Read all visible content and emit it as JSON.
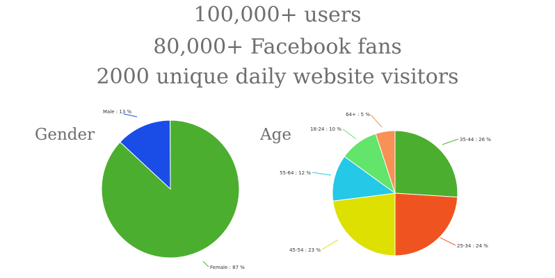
{
  "headlines": {
    "line1": "100,000+ users",
    "line2": "80,000+ Facebook fans",
    "line3": "2000 unique daily website visitors"
  },
  "chart_data": [
    {
      "type": "pie",
      "title": "Gender",
      "slices": [
        {
          "label": "Male",
          "value": 13,
          "text": "Male : 13 %",
          "color": "#1a4de8"
        },
        {
          "label": "Female",
          "value": 87,
          "text": "Female : 87 %",
          "color": "#4cae2f"
        }
      ]
    },
    {
      "type": "pie",
      "title": "Age",
      "slices": [
        {
          "label": "35-44",
          "value": 26,
          "text": "35-44 : 26 %",
          "color": "#4cae2f"
        },
        {
          "label": "25-34",
          "value": 24,
          "text": "25-34 : 24 %",
          "color": "#ef5420"
        },
        {
          "label": "45-54",
          "value": 23,
          "text": "45-54 : 23 %",
          "color": "#dde000"
        },
        {
          "label": "55-64",
          "value": 12,
          "text": "55-64 : 12 %",
          "color": "#25c8e6"
        },
        {
          "label": "18-24",
          "value": 10,
          "text": "18-24 : 10 %",
          "color": "#63e46a"
        },
        {
          "label": "64+",
          "value": 5,
          "text": "64+ : 5 %",
          "color": "#f79155"
        }
      ]
    }
  ]
}
